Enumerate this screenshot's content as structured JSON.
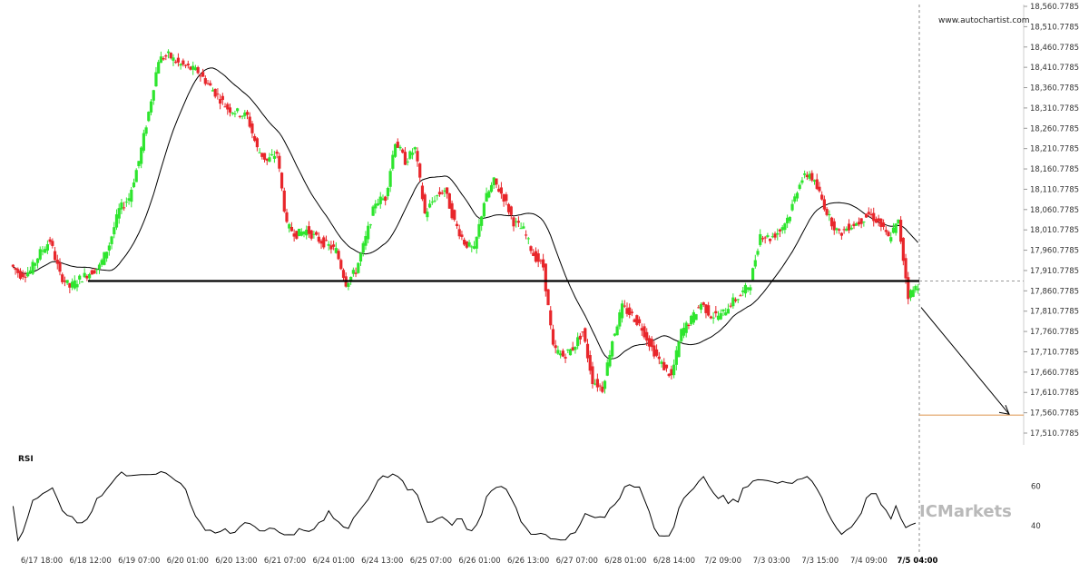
{
  "watermark": "www.autochartist.com",
  "brand": "ICMarkets",
  "rsi_label": "RSI",
  "colors": {
    "up": "#2ee52e",
    "down": "#e8262b",
    "ma": "#000000",
    "target": "#e0a060",
    "level": "#000000"
  },
  "chart_data": [
    {
      "type": "candlestick",
      "title": "",
      "y_ticks": [
        "18,560.7785",
        "18,510.7785",
        "18,460.7785",
        "18,410.7785",
        "18,360.7785",
        "18,310.7785",
        "18,260.7785",
        "18,210.7785",
        "18,160.7785",
        "18,110.7785",
        "18,060.7785",
        "18,010.7785",
        "17,960.7785",
        "17,910.7785",
        "17,860.7785",
        "17,810.7785",
        "17,760.7785",
        "17,710.7785",
        "17,660.7785",
        "17,610.7785",
        "17,560.7785",
        "17,510.7785"
      ],
      "x_ticks": [
        "6/17 18:00",
        "6/18 12:00",
        "6/19 07:00",
        "6/20 01:00",
        "6/20 13:00",
        "6/21 07:00",
        "6/24 01:00",
        "6/24 13:00",
        "6/25 07:00",
        "6/26 01:00",
        "6/26 13:00",
        "6/27 07:00",
        "6/28 01:00",
        "6/28 14:00",
        "7/2 09:00",
        "7/3 03:00",
        "7/3 15:00",
        "7/4 09:00",
        "7/5 04:00"
      ],
      "ylim": [
        17510.7785,
        18560.7785
      ],
      "support_level": 17885,
      "target_level": 17555,
      "close_path": [
        17925,
        17900,
        17910,
        17955,
        17985,
        17900,
        17870,
        17890,
        17905,
        17920,
        17975,
        18060,
        18090,
        18180,
        18300,
        18430,
        18440,
        18420,
        18410,
        18400,
        18370,
        18340,
        18310,
        18300,
        18290,
        18210,
        18180,
        18200,
        18020,
        18000,
        18010,
        17990,
        17975,
        17960,
        17880,
        17910,
        17990,
        18080,
        18090,
        18230,
        18180,
        18210,
        18050,
        18090,
        18110,
        18030,
        17980,
        17960,
        18080,
        18130,
        18090,
        18030,
        18010,
        17950,
        17920,
        17720,
        17700,
        17720,
        17760,
        17640,
        17620,
        17740,
        17820,
        17800,
        17770,
        17720,
        17680,
        17650,
        17760,
        17790,
        17830,
        17800,
        17800,
        17830,
        17850,
        17880,
        18000,
        17990,
        18010,
        18050,
        18130,
        18150,
        18100,
        18040,
        18000,
        18020,
        18030,
        18050,
        18030,
        17990,
        18030,
        17850,
        17875
      ]
    },
    {
      "type": "line",
      "title": "RSI",
      "y_ticks": [
        "60",
        "40"
      ],
      "ylim": [
        35,
        70
      ]
    }
  ]
}
